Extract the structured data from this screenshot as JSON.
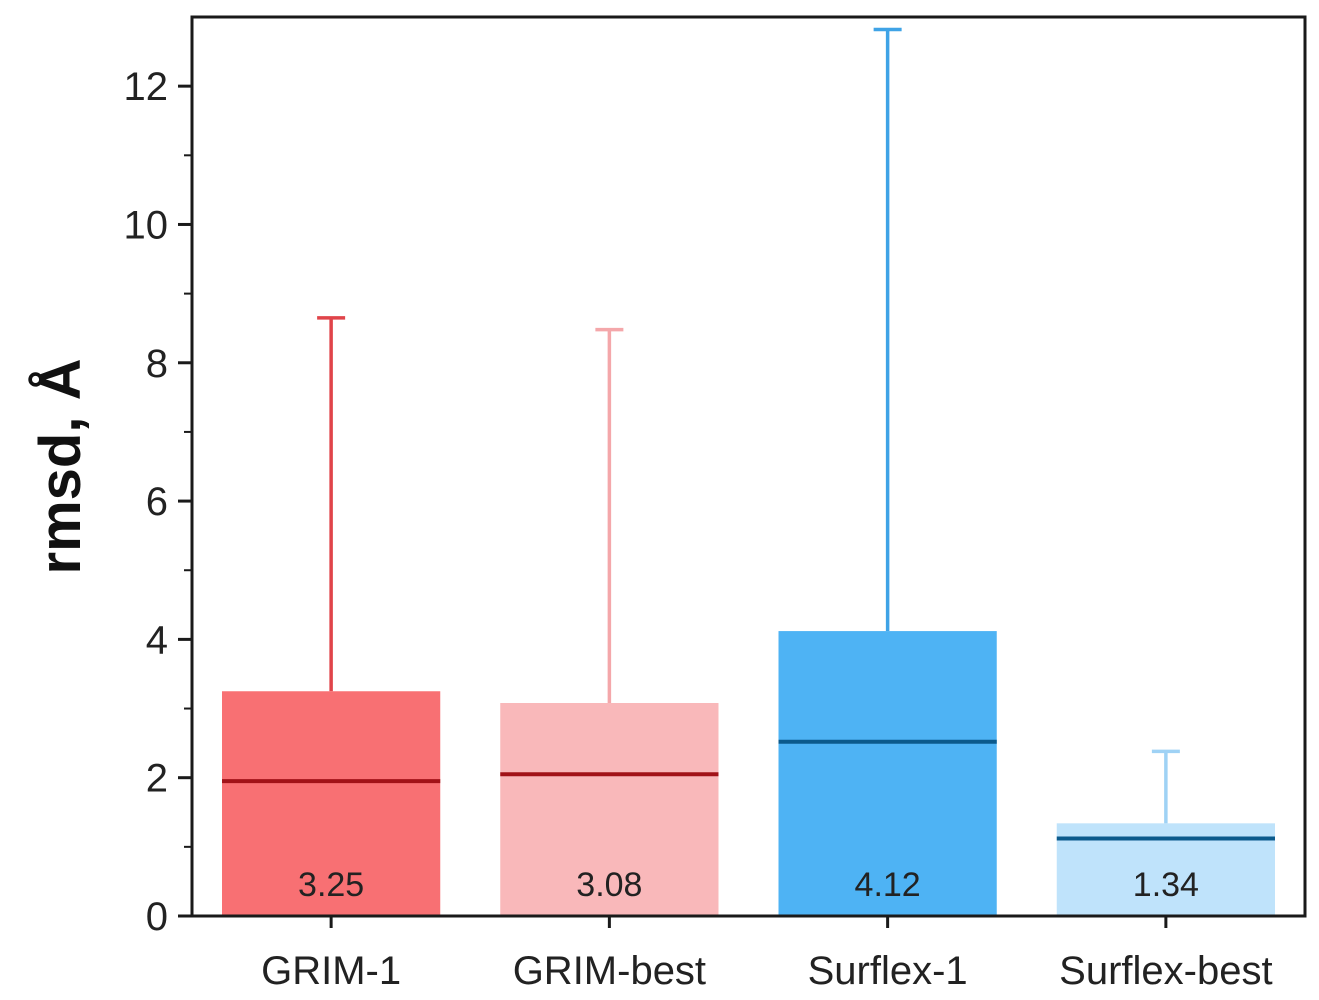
{
  "chart_data": {
    "type": "box",
    "ylabel": "rmsd, Å",
    "ylim": [
      0,
      13
    ],
    "yticks": [
      0,
      2,
      4,
      6,
      8,
      10,
      12
    ],
    "categories": [
      "GRIM-1",
      "GRIM-best",
      "Surflex-1",
      "Surflex-best"
    ],
    "series": [
      {
        "category": "GRIM-1",
        "box_top": 3.25,
        "median": 1.95,
        "whisker_max": 8.65,
        "value_label": "3.25",
        "fill": "#f87073",
        "median_color": "#a11218",
        "whisker_color": "#e0444a"
      },
      {
        "category": "GRIM-best",
        "box_top": 3.08,
        "median": 2.05,
        "whisker_max": 8.48,
        "value_label": "3.08",
        "fill": "#f9b8ba",
        "median_color": "#a11218",
        "whisker_color": "#f4a7aa"
      },
      {
        "category": "Surflex-1",
        "box_top": 4.12,
        "median": 2.52,
        "whisker_max": 12.82,
        "value_label": "4.12",
        "fill": "#4eb3f4",
        "median_color": "#0b5a8c",
        "whisker_color": "#3fa3e6"
      },
      {
        "category": "Surflex-best",
        "box_top": 1.34,
        "median": 1.12,
        "whisker_max": 2.38,
        "value_label": "1.34",
        "fill": "#bfe3fb",
        "median_color": "#0b5a8c",
        "whisker_color": "#9fd2f5"
      }
    ],
    "grid": false,
    "legend": "none"
  }
}
